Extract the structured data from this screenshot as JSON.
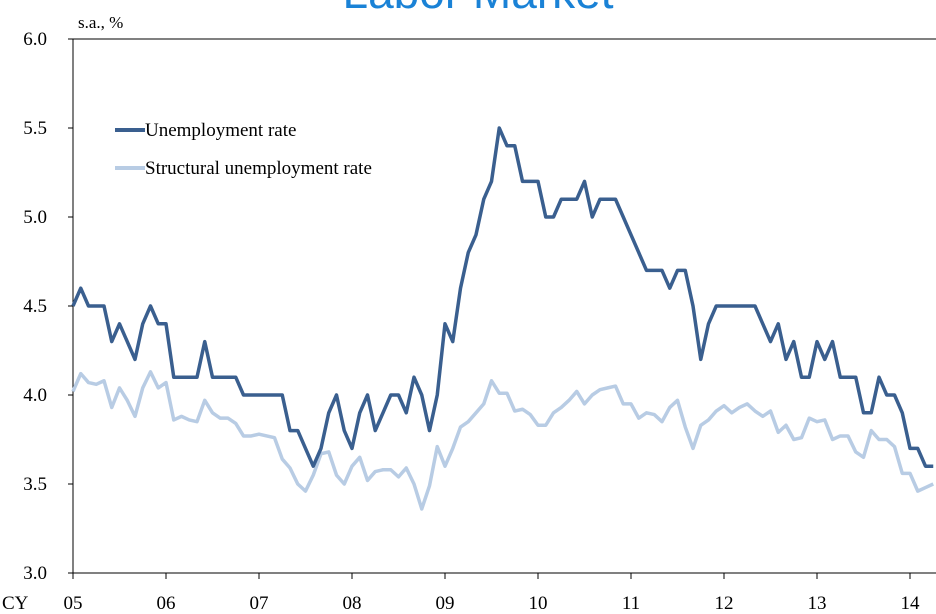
{
  "chart_data": {
    "type": "line",
    "title": "Labor Market",
    "y_axis_label": "s.a., %",
    "x_axis_label": "CY",
    "categories": [
      "05",
      null,
      null,
      null,
      null,
      null,
      null,
      null,
      null,
      null,
      null,
      null,
      "06",
      null,
      null,
      null,
      null,
      null,
      null,
      null,
      null,
      null,
      null,
      null,
      "07",
      null,
      null,
      null,
      null,
      null,
      null,
      null,
      null,
      null,
      null,
      null,
      "08",
      null,
      null,
      null,
      null,
      null,
      null,
      null,
      null,
      null,
      null,
      null,
      "09",
      null,
      null,
      null,
      null,
      null,
      null,
      null,
      null,
      null,
      null,
      null,
      "10",
      null,
      null,
      null,
      null,
      null,
      null,
      null,
      null,
      null,
      null,
      null,
      "11",
      null,
      null,
      null,
      null,
      null,
      null,
      null,
      null,
      null,
      null,
      null,
      "12",
      null,
      null,
      null,
      null,
      null,
      null,
      null,
      null,
      null,
      null,
      null,
      "13",
      null,
      null,
      null,
      null,
      null,
      null,
      null,
      null,
      null,
      null,
      null,
      "14",
      null,
      null,
      null
    ],
    "series": [
      {
        "name": "Unemployment rate",
        "color": "#3a5f8f",
        "values": [
          4.5,
          4.6,
          4.5,
          4.5,
          4.5,
          4.3,
          4.4,
          4.3,
          4.2,
          4.4,
          4.5,
          4.4,
          4.4,
          4.1,
          4.1,
          4.1,
          4.1,
          4.3,
          4.1,
          4.1,
          4.1,
          4.1,
          4.0,
          4.0,
          4.0,
          4.0,
          4.0,
          4.0,
          3.8,
          3.8,
          3.7,
          3.6,
          3.7,
          3.9,
          4.0,
          3.8,
          3.7,
          3.9,
          4.0,
          3.8,
          3.9,
          4.0,
          4.0,
          3.9,
          4.1,
          4.0,
          3.8,
          4.0,
          4.4,
          4.3,
          4.6,
          4.8,
          4.9,
          5.1,
          5.2,
          5.5,
          5.4,
          5.4,
          5.2,
          5.2,
          5.2,
          5.0,
          5.0,
          5.1,
          5.1,
          5.1,
          5.2,
          5.0,
          5.1,
          5.1,
          5.1,
          5.0,
          4.9,
          4.8,
          4.7,
          4.7,
          4.7,
          4.6,
          4.7,
          4.7,
          4.5,
          4.2,
          4.4,
          4.5,
          4.5,
          4.5,
          4.5,
          4.5,
          4.5,
          4.4,
          4.3,
          4.4,
          4.2,
          4.3,
          4.1,
          4.1,
          4.3,
          4.2,
          4.3,
          4.1,
          4.1,
          4.1,
          3.9,
          3.9,
          4.1,
          4.0,
          4.0,
          3.9,
          3.7,
          3.7,
          3.6,
          3.6
        ]
      },
      {
        "name": "Structural unemployment rate",
        "color": "#b8cce4",
        "values": [
          4.02,
          4.12,
          4.07,
          4.06,
          4.08,
          3.93,
          4.04,
          3.97,
          3.88,
          4.04,
          4.13,
          4.04,
          4.07,
          3.86,
          3.88,
          3.86,
          3.85,
          3.97,
          3.9,
          3.87,
          3.87,
          3.84,
          3.77,
          3.77,
          3.78,
          3.77,
          3.76,
          3.64,
          3.59,
          3.5,
          3.46,
          3.55,
          3.67,
          3.68,
          3.55,
          3.5,
          3.6,
          3.65,
          3.52,
          3.57,
          3.58,
          3.58,
          3.54,
          3.59,
          3.5,
          3.36,
          3.49,
          3.71,
          3.6,
          3.7,
          3.82,
          3.85,
          3.9,
          3.95,
          4.08,
          4.01,
          4.01,
          3.91,
          3.92,
          3.89,
          3.83,
          3.83,
          3.9,
          3.93,
          3.97,
          4.02,
          3.95,
          4.0,
          4.03,
          4.04,
          4.05,
          3.95,
          3.95,
          3.87,
          3.9,
          3.89,
          3.85,
          3.93,
          3.97,
          3.82,
          3.7,
          3.83,
          3.86,
          3.91,
          3.94,
          3.9,
          3.93,
          3.95,
          3.91,
          3.88,
          3.91,
          3.79,
          3.83,
          3.75,
          3.76,
          3.87,
          3.85,
          3.86,
          3.75,
          3.77,
          3.77,
          3.68,
          3.65,
          3.8,
          3.75,
          3.75,
          3.71,
          3.56,
          3.56,
          3.46,
          3.48,
          3.5
        ]
      }
    ],
    "ylim": [
      3.0,
      6.0
    ],
    "yticks": [
      {
        "value": 3,
        "label": "3.0"
      },
      3.5,
      {
        "value": 4,
        "label": "4.0"
      },
      4.5,
      {
        "value": 5,
        "label": "5.0"
      },
      5.5,
      {
        "value": 6,
        "label": "6.0"
      }
    ],
    "grid": false,
    "legend": "upper-left"
  }
}
